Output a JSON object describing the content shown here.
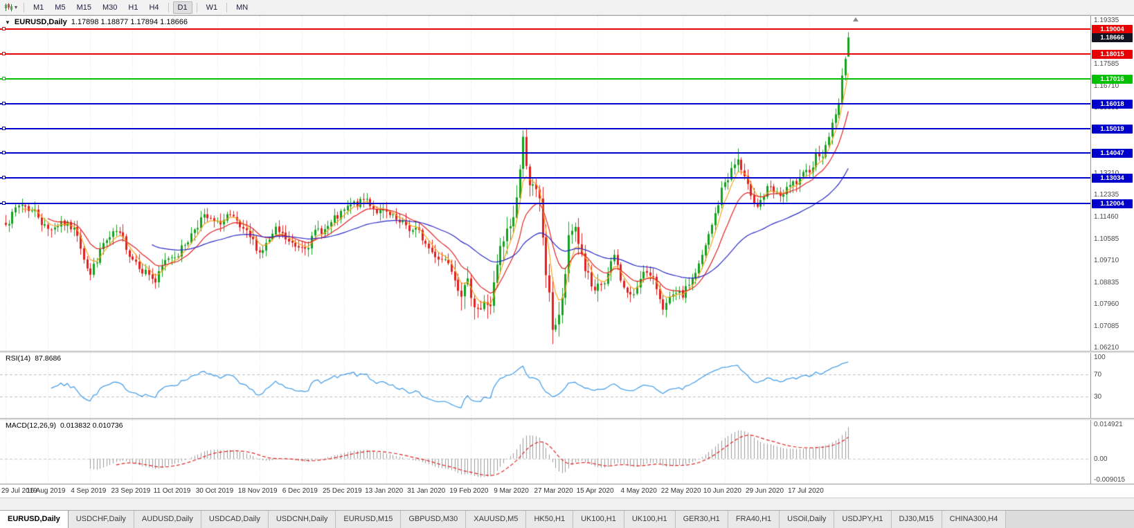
{
  "toolbar": {
    "chart_type_icon": "candlestick-chart-icon",
    "timeframe_groups": [
      [
        "M1",
        "M5",
        "M15",
        "M30",
        "H1",
        "H4"
      ],
      [
        "D1"
      ],
      [
        "W1"
      ],
      [
        "MN"
      ]
    ],
    "active_timeframe": "D1"
  },
  "chart_header": {
    "symbol": "EURUSD,Daily",
    "ohlc": "1.17898 1.18877 1.17894 1.18666"
  },
  "chart_data": {
    "type": "candlestick",
    "symbol": "EURUSD",
    "timeframe": "Daily",
    "current_ohlc": {
      "open": 1.17898,
      "high": 1.18877,
      "low": 1.17894,
      "close": 1.18666
    },
    "price_axis": {
      "min": 1.0611,
      "max": 1.1953,
      "labels": [
        {
          "value": 1.19335,
          "text": "1.19335"
        },
        {
          "value": 1.17585,
          "text": "1.17585"
        },
        {
          "value": 1.1671,
          "text": "1.16710"
        },
        {
          "value": 1.15835,
          "text": "1.15835"
        },
        {
          "value": 1.1321,
          "text": "1.13210"
        },
        {
          "value": 1.12335,
          "text": "1.12335"
        },
        {
          "value": 1.1146,
          "text": "1.11460"
        },
        {
          "value": 1.10585,
          "text": "1.10585"
        },
        {
          "value": 1.0971,
          "text": "1.09710"
        },
        {
          "value": 1.08835,
          "text": "1.08835"
        },
        {
          "value": 1.0796,
          "text": "1.07960"
        },
        {
          "value": 1.07085,
          "text": "1.07085"
        },
        {
          "value": 1.0621,
          "text": "1.06210"
        }
      ]
    },
    "horizontal_lines": [
      {
        "price": 1.19004,
        "label": "1.19004",
        "color": "#e80000",
        "kind": "resistance"
      },
      {
        "price": 1.18015,
        "label": "1.18015",
        "color": "#e80000",
        "kind": "resistance"
      },
      {
        "price": 1.17016,
        "label": "1.17016",
        "color": "#00c000",
        "kind": "support"
      },
      {
        "price": 1.16018,
        "label": "1.16018",
        "color": "#0000cc",
        "kind": "support"
      },
      {
        "price": 1.15019,
        "label": "1.15019",
        "color": "#0000cc",
        "kind": "support"
      },
      {
        "price": 1.14047,
        "label": "1.14047",
        "color": "#0000cc",
        "kind": "support"
      },
      {
        "price": 1.13034,
        "label": "1.13034",
        "color": "#0000cc",
        "kind": "support"
      },
      {
        "price": 1.12004,
        "label": "1.12004",
        "color": "#0000cc",
        "kind": "support"
      }
    ],
    "current_price_marker": {
      "price": 1.18666,
      "label": "1.18666",
      "bg": "#121220"
    },
    "x_axis": {
      "tick_labels": [
        "29 Jul 2019",
        "16 Aug 2019",
        "4 Sep 2019",
        "23 Sep 2019",
        "11 Oct 2019",
        "30 Oct 2019",
        "18 Nov 2019",
        "6 Dec 2019",
        "25 Dec 2019",
        "13 Jan 2020",
        "31 Jan 2020",
        "19 Feb 2020",
        "9 Mar 2020",
        "27 Mar 2020",
        "15 Apr 2020",
        "4 May 2020",
        "22 May 2020",
        "10 Jun 2020",
        "29 Jun 2020",
        "17 Jul 2020"
      ],
      "tick_bar_indices": [
        0,
        13,
        26,
        39,
        52,
        65,
        78,
        91,
        104,
        117,
        130,
        143,
        156,
        169,
        182,
        195,
        208,
        221,
        234,
        247
      ]
    },
    "bars_total": 260,
    "trend_anchors": [
      [
        0,
        1.1138
      ],
      [
        5,
        1.1198
      ],
      [
        9,
        1.117
      ],
      [
        13,
        1.1098
      ],
      [
        17,
        1.1137
      ],
      [
        22,
        1.1078
      ],
      [
        26,
        1.0925
      ],
      [
        30,
        1.1035
      ],
      [
        34,
        1.1072
      ],
      [
        38,
        1.1005
      ],
      [
        43,
        1.094
      ],
      [
        46,
        1.089
      ],
      [
        50,
        1.098
      ],
      [
        55,
        1.104
      ],
      [
        60,
        1.115
      ],
      [
        65,
        1.1105
      ],
      [
        68,
        1.1152
      ],
      [
        73,
        1.107
      ],
      [
        78,
        1.101
      ],
      [
        83,
        1.108
      ],
      [
        89,
        1.1018
      ],
      [
        95,
        1.108
      ],
      [
        100,
        1.1115
      ],
      [
        106,
        1.118
      ],
      [
        111,
        1.1212
      ],
      [
        116,
        1.116
      ],
      [
        121,
        1.1105
      ],
      [
        126,
        1.109
      ],
      [
        131,
        1.1005
      ],
      [
        136,
        1.098
      ],
      [
        141,
        1.0875
      ],
      [
        146,
        1.079
      ],
      [
        149,
        1.0805
      ],
      [
        152,
        1.099
      ],
      [
        156,
        1.1135
      ],
      [
        159,
        1.1446
      ],
      [
        161,
        1.131
      ],
      [
        164,
        1.118
      ],
      [
        166,
        1.092
      ],
      [
        168,
        1.07
      ],
      [
        169,
        1.073
      ],
      [
        171,
        1.08
      ],
      [
        173,
        1.103
      ],
      [
        175,
        1.11
      ],
      [
        178,
        1.095
      ],
      [
        181,
        1.08
      ],
      [
        184,
        1.087
      ],
      [
        187,
        1.098
      ],
      [
        190,
        1.086
      ],
      [
        193,
        1.082
      ],
      [
        196,
        1.095
      ],
      [
        199,
        1.088
      ],
      [
        202,
        1.08
      ],
      [
        205,
        1.0815
      ],
      [
        208,
        1.082
      ],
      [
        211,
        1.09
      ],
      [
        214,
        1.098
      ],
      [
        217,
        1.11
      ],
      [
        220,
        1.125
      ],
      [
        223,
        1.134
      ],
      [
        225,
        1.1375
      ],
      [
        228,
        1.1245
      ],
      [
        231,
        1.121
      ],
      [
        234,
        1.1255
      ],
      [
        237,
        1.122
      ],
      [
        240,
        1.1245
      ],
      [
        243,
        1.1275
      ],
      [
        246,
        1.13
      ],
      [
        249,
        1.14
      ],
      [
        252,
        1.143
      ],
      [
        254,
        1.1525
      ],
      [
        256,
        1.16
      ],
      [
        257,
        1.171
      ],
      [
        258,
        1.1787
      ],
      [
        259,
        1.18666
      ]
    ],
    "extremes": [
      {
        "bar": 159,
        "high": 1.1495
      },
      {
        "bar": 168,
        "low": 1.0638
      },
      {
        "bar": 146,
        "low": 1.0778
      },
      {
        "bar": 225,
        "high": 1.1422
      }
    ],
    "moving_averages": [
      {
        "period": 5,
        "type": "ema",
        "color": "#f7a21a"
      },
      {
        "period": 13,
        "type": "ema",
        "color": "#e02020"
      },
      {
        "period": 45,
        "type": "ema",
        "color": "#2828c8"
      }
    ],
    "candle_colors": {
      "up": "#14a01e",
      "down": "#e02020"
    },
    "indicators": {
      "rsi": {
        "label": "RSI(14)",
        "value_text": "87.8686",
        "period": 14,
        "levels": [
          100,
          70,
          30
        ],
        "axis_labels": [
          "100",
          "70",
          "30"
        ],
        "line_color": "#4aa0e8"
      },
      "macd": {
        "label": "MACD(12,26,9)",
        "values_text": "0.013832 0.010736",
        "fast": 12,
        "slow": 26,
        "signal": 9,
        "axis_max": "0.014921",
        "axis_zero": "0.00",
        "axis_min": "-0.009015",
        "scale": {
          "max": 0.014921,
          "min": -0.009015
        },
        "hist_color": "#9a9a9a",
        "signal_color": "#e02020"
      }
    }
  },
  "tabs": {
    "items": [
      "EURUSD,Daily",
      "USDCHF,Daily",
      "AUDUSD,Daily",
      "USDCAD,Daily",
      "USDCNH,Daily",
      "EURUSD,M15",
      "GBPUSD,M30",
      "XAUUSD,M5",
      "HK50,H1",
      "UK100,H1",
      "UK100,H1",
      "GER30,H1",
      "FRA40,H1",
      "USOil,Daily",
      "USDJPY,H1",
      "DJ30,M15",
      "CHINA300,H4"
    ],
    "active_index": 0
  }
}
